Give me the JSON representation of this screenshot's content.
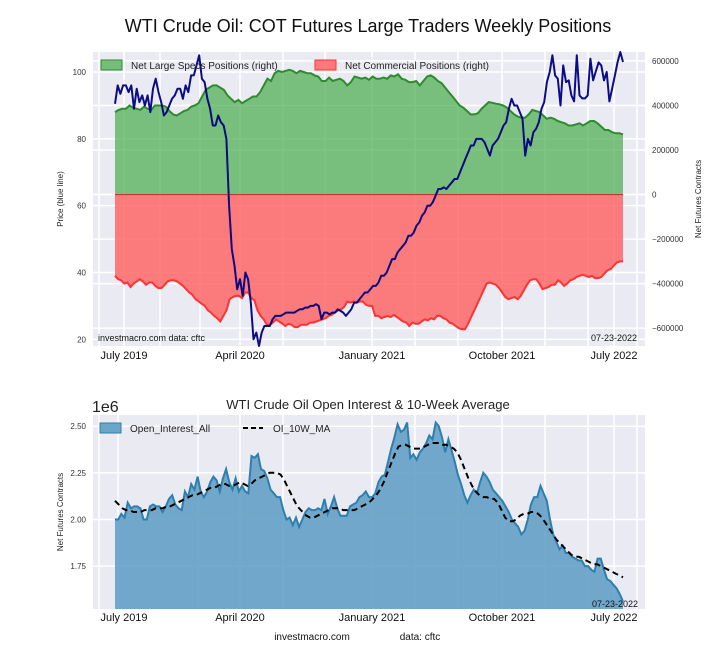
{
  "figure": {
    "footer_site": "investmacro.com",
    "footer_data": "data: cftc"
  },
  "chart_data": [
    {
      "type": "area",
      "title": "WTI Crude Oil: COT Futures Large Traders Weekly Positions",
      "ylabel_left": "Price (blue line)",
      "ylabel_right": "Net Futures Contracts",
      "ylim_left": [
        18,
        106
      ],
      "ylim_right": [
        -680000,
        640000
      ],
      "yticks_left": [
        "20",
        "40",
        "60",
        "80",
        "100"
      ],
      "yticks_left_values": [
        20,
        40,
        60,
        80,
        100
      ],
      "yticks_right": [
        "-600000",
        "-400000",
        "-200000",
        "0",
        "200000",
        "400000",
        "600000"
      ],
      "yticks_right_values": [
        -600000,
        -400000,
        -200000,
        0,
        200000,
        400000,
        600000
      ],
      "xticks": [
        "July 2019",
        "April 2020",
        "January 2021",
        "October 2021",
        "July 2022"
      ],
      "xticks_t": [
        0.035,
        0.262,
        0.513,
        0.765,
        0.985
      ],
      "grid": true,
      "legend_position": "top",
      "legend": [
        {
          "label": "Net Large Specs Positions (right)",
          "color": "#2e8b2e"
        },
        {
          "label": "Net Commercial Positions (right)",
          "color": "#ff3333"
        }
      ],
      "watermark": "investmacro.com   data: cftc",
      "date_stamp": "07-23-2022",
      "series": [
        {
          "name": "Net Large Specs Positions (right)",
          "axis": "right",
          "color": "#2e8b2e",
          "values": [
            370000,
            380000,
            385000,
            385000,
            400000,
            390000,
            385000,
            380000,
            395000,
            385000,
            380000,
            400000,
            400000,
            400000,
            395000,
            375000,
            360000,
            355000,
            365000,
            375000,
            380000,
            395000,
            400000,
            410000,
            440000,
            470000,
            480000,
            490000,
            490000,
            480000,
            470000,
            445000,
            430000,
            415000,
            425000,
            410000,
            420000,
            430000,
            440000,
            440000,
            460000,
            490000,
            520000,
            510000,
            545000,
            555000,
            550000,
            555000,
            560000,
            555000,
            545000,
            555000,
            550000,
            545000,
            545000,
            535000,
            530000,
            510000,
            510000,
            525000,
            510000,
            515000,
            520000,
            510000,
            490000,
            505000,
            530000,
            525000,
            520000,
            525000,
            515000,
            530000,
            520000,
            520000,
            525000,
            520000,
            535000,
            530000,
            540000,
            520000,
            515000,
            505000,
            505000,
            510000,
            490000,
            510000,
            530000,
            535000,
            525000,
            510000,
            500000,
            480000,
            460000,
            440000,
            420000,
            400000,
            390000,
            375000,
            360000,
            360000,
            365000,
            385000,
            400000,
            415000,
            412000,
            408000,
            405000,
            400000,
            390000,
            375000,
            360000,
            350000,
            345000,
            345000,
            360000,
            380000,
            375000,
            370000,
            355000,
            340000,
            345000,
            340000,
            330000,
            325000,
            320000,
            310000,
            310000,
            315000,
            320000,
            310000,
            320000,
            330000,
            330000,
            320000,
            305000,
            290000,
            290000,
            280000,
            275000,
            275000,
            270000
          ]
        },
        {
          "name": "Net Commercial Positions (right)",
          "axis": "right",
          "color": "#ff3333",
          "values": [
            -365000,
            -380000,
            -385000,
            -400000,
            -395000,
            -415000,
            -400000,
            -390000,
            -380000,
            -390000,
            -405000,
            -395000,
            -395000,
            -410000,
            -420000,
            -420000,
            -405000,
            -390000,
            -385000,
            -385000,
            -390000,
            -400000,
            -410000,
            -425000,
            -440000,
            -450000,
            -470000,
            -480000,
            -490000,
            -500000,
            -520000,
            -530000,
            -545000,
            -555000,
            -570000,
            -545000,
            -520000,
            -470000,
            -460000,
            -455000,
            -455000,
            -465000,
            -440000,
            -440000,
            -465000,
            -475000,
            -520000,
            -545000,
            -560000,
            -585000,
            -585000,
            -575000,
            -560000,
            -570000,
            -580000,
            -590000,
            -580000,
            -585000,
            -595000,
            -595000,
            -585000,
            -585000,
            -585000,
            -575000,
            -575000,
            -570000,
            -565000,
            -560000,
            -555000,
            -545000,
            -540000,
            -530000,
            -520000,
            -515000,
            -505000,
            -480000,
            -485000,
            -480000,
            -485000,
            -480000,
            -480000,
            -495000,
            -500000,
            -500000,
            -545000,
            -545000,
            -555000,
            -550000,
            -545000,
            -550000,
            -540000,
            -550000,
            -560000,
            -570000,
            -575000,
            -590000,
            -575000,
            -580000,
            -580000,
            -570000,
            -560000,
            -565000,
            -555000,
            -560000,
            -545000,
            -545000,
            -555000,
            -560000,
            -575000,
            -580000,
            -590000,
            -600000,
            -605000,
            -605000,
            -580000,
            -550000,
            -520000,
            -490000,
            -460000,
            -430000,
            -400000,
            -395000,
            -400000,
            -405000,
            -420000,
            -440000,
            -460000,
            -470000,
            -465000,
            -460000,
            -470000,
            -455000,
            -430000,
            -405000,
            -385000,
            -380000,
            -380000,
            -400000,
            -425000,
            -420000,
            -415000,
            -405000,
            -405000,
            -385000,
            -395000,
            -410000,
            -400000,
            -385000,
            -380000,
            -370000,
            -365000,
            -360000,
            -365000,
            -370000,
            -365000,
            -375000,
            -375000,
            -370000,
            -355000,
            -340000,
            -335000,
            -320000,
            -305000,
            -300000,
            -300000
          ]
        },
        {
          "name": "Price (blue line)",
          "axis": "left",
          "color": "#000080",
          "values": [
            90.5,
            96,
            93.5,
            96,
            96,
            94,
            96,
            89,
            95,
            91,
            93,
            90,
            93,
            88,
            95,
            98,
            94,
            91,
            87,
            88,
            90,
            92,
            93,
            95,
            95,
            92,
            96,
            94,
            99,
            99,
            102,
            105,
            98,
            97,
            92,
            89,
            84,
            84,
            87,
            85,
            84,
            80,
            60,
            47,
            42,
            35,
            38,
            33,
            40,
            38,
            31,
            20,
            22,
            18,
            22,
            24,
            24,
            24,
            26,
            27,
            27,
            27,
            27.5,
            28,
            28,
            28,
            28,
            28.5,
            29,
            29,
            29.5,
            29.5,
            30,
            30,
            30.5,
            30,
            26,
            28,
            28,
            27.5,
            28,
            28,
            29,
            28.5,
            28,
            27,
            28,
            29,
            31,
            31,
            32,
            33,
            34,
            34,
            35,
            36,
            36,
            37,
            39,
            39,
            40,
            42,
            44,
            44,
            46,
            47,
            48,
            49,
            51,
            51,
            52,
            54,
            55,
            57,
            58,
            60,
            60,
            61,
            63,
            65,
            65,
            65.5,
            65,
            66,
            67,
            68,
            68,
            70,
            72,
            74,
            76,
            78,
            78,
            80,
            80,
            80,
            79,
            77,
            75,
            78,
            79,
            80,
            82,
            84,
            85,
            89,
            92,
            90,
            90,
            88,
            86,
            75,
            80,
            78,
            82,
            83,
            85,
            89,
            91,
            97,
            100,
            105,
            99,
            98,
            90,
            120,
            97,
            115,
            110,
            108,
            105,
            110,
            109,
            109,
            110,
            104,
            115,
            118,
            121,
            120,
            115,
            100,
            108,
            95,
            99,
            103,
            106,
            103
          ]
        }
      ]
    },
    {
      "type": "area",
      "title": "WTI Crude Oil Open Interest & 10-Week Average",
      "ylabel": "Net Futures Contracts",
      "yscale_label": "1e6",
      "ylim": [
        1.52,
        2.56
      ],
      "yticks": [
        "1.75",
        "2.00",
        "2.25",
        "2.50"
      ],
      "yticks_values": [
        1.75,
        2.0,
        2.25,
        2.5
      ],
      "xticks": [
        "July 2019",
        "April 2020",
        "January 2021",
        "October 2021",
        "July 2022"
      ],
      "xticks_t": [
        0.035,
        0.262,
        0.513,
        0.765,
        0.985
      ],
      "grid": true,
      "legend_position": "top-left",
      "legend": [
        {
          "label": "Open_Interest_All",
          "color": "#4a90b8"
        },
        {
          "label": "OI_10W_MA",
          "color": "#000000",
          "style": "dashed"
        }
      ],
      "date_stamp": "07-23-2022",
      "series": [
        {
          "name": "Open_Interest_All",
          "color": "#2f7fae",
          "values": [
            2.0,
            2.0,
            2.03,
            2.01,
            2.09,
            2.06,
            2.07,
            2.07,
            2.06,
            2.0,
            2.0,
            2.07,
            2.08,
            2.07,
            2.07,
            2.04,
            2.07,
            2.11,
            2.13,
            2.08,
            2.06,
            2.05,
            2.15,
            2.12,
            2.19,
            2.16,
            2.23,
            2.15,
            2.12,
            2.15,
            2.2,
            2.23,
            2.21,
            2.15,
            2.22,
            2.27,
            2.2,
            2.16,
            2.22,
            2.15,
            2.18,
            2.15,
            2.14,
            2.34,
            2.33,
            2.35,
            2.27,
            2.26,
            2.22,
            2.16,
            2.14,
            2.12,
            2.12,
            2.05,
            2.0,
            2.01,
            1.97,
            2.01,
            1.96,
            2.0,
            2.04,
            2.06,
            2.05,
            2.05,
            2.06,
            2.05,
            2.11,
            2.03,
            2.07,
            2.12,
            2.06,
            2.02,
            2.02,
            2.02,
            2.07,
            2.08,
            2.09,
            2.12,
            2.13,
            2.15,
            2.12,
            2.12,
            2.14,
            2.2,
            2.23,
            2.24,
            2.31,
            2.38,
            2.44,
            2.51,
            2.47,
            2.48,
            2.52,
            2.33,
            2.35,
            2.32,
            2.36,
            2.38,
            2.41,
            2.45,
            2.43,
            2.52,
            2.5,
            2.44,
            2.36,
            2.43,
            2.37,
            2.31,
            2.24,
            2.19,
            2.13,
            2.09,
            2.13,
            2.16,
            2.14,
            2.2,
            2.25,
            2.23,
            2.2,
            2.16,
            2.14,
            2.12,
            2.1,
            2.07,
            2.04,
            2.0,
            1.98,
            1.96,
            1.92,
            1.94,
            2.0,
            2.08,
            2.12,
            2.12,
            2.18,
            2.14,
            2.1,
            2.0,
            1.92,
            1.88,
            1.84,
            1.86,
            1.82,
            1.82,
            1.8,
            1.79,
            1.78,
            1.78,
            1.75,
            1.75,
            1.73,
            1.72,
            1.79,
            1.79,
            1.73,
            1.68,
            1.67,
            1.65,
            1.63,
            1.6,
            1.56
          ]
        },
        {
          "name": "OI_10W_MA",
          "color": "#000000",
          "style": "dashed",
          "values": [
            2.1,
            2.08,
            2.06,
            2.05,
            2.05,
            2.04,
            2.04,
            2.04,
            2.05,
            2.05,
            2.05,
            2.06,
            2.06,
            2.06,
            2.07,
            2.07,
            2.08,
            2.09,
            2.1,
            2.11,
            2.12,
            2.13,
            2.13,
            2.14,
            2.15,
            2.16,
            2.17,
            2.17,
            2.18,
            2.19,
            2.19,
            2.18,
            2.18,
            2.19,
            2.2,
            2.19,
            2.18,
            2.19,
            2.21,
            2.22,
            2.23,
            2.24,
            2.25,
            2.25,
            2.25,
            2.24,
            2.21,
            2.17,
            2.13,
            2.09,
            2.06,
            2.04,
            2.02,
            2.01,
            2.01,
            2.02,
            2.03,
            2.04,
            2.05,
            2.06,
            2.06,
            2.06,
            2.05,
            2.05,
            2.05,
            2.05,
            2.06,
            2.07,
            2.08,
            2.09,
            2.11,
            2.13,
            2.16,
            2.2,
            2.25,
            2.3,
            2.35,
            2.39,
            2.4,
            2.4,
            2.39,
            2.38,
            2.38,
            2.38,
            2.39,
            2.4,
            2.41,
            2.41,
            2.41,
            2.4,
            2.4,
            2.39,
            2.38,
            2.36,
            2.32,
            2.27,
            2.22,
            2.18,
            2.15,
            2.13,
            2.12,
            2.12,
            2.11,
            2.11,
            2.09,
            2.05,
            2.01,
            1.99,
            1.99,
            2.0,
            2.02,
            2.03,
            2.03,
            2.04,
            2.04,
            2.03,
            2.01,
            1.98,
            1.95,
            1.92,
            1.89,
            1.87,
            1.85,
            1.83,
            1.81,
            1.8,
            1.8,
            1.79,
            1.78,
            1.77,
            1.76,
            1.76,
            1.75,
            1.74,
            1.73,
            1.72,
            1.71,
            1.7,
            1.69
          ]
        }
      ]
    }
  ]
}
